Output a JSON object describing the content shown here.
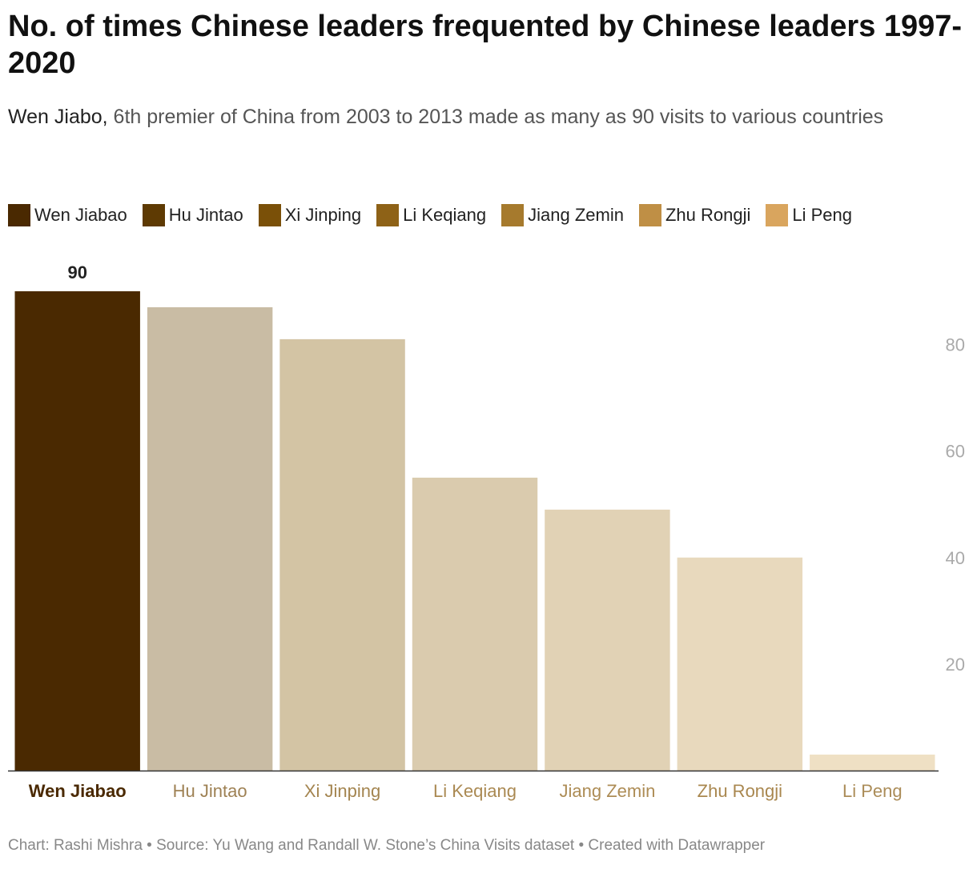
{
  "title": "No. of times Chinese leaders frequented by Chinese leaders 1997-2020",
  "subtitle": {
    "lead": "Wen Jiabo,",
    "rest": " 6th premier of China from 2003 to 2013 made as many as 90 visits to various countries"
  },
  "footer": "Chart: Rashi Mishra • Source: Yu Wang and Randall W. Stone’s China Visits dataset • Created with Datawrapper",
  "legend": [
    {
      "label": "Wen Jiabao",
      "color": "#4a2901"
    },
    {
      "label": "Hu Jintao",
      "color": "#5e3a03"
    },
    {
      "label": "Xi Jinping",
      "color": "#7a5008"
    },
    {
      "label": "Li Keqiang",
      "color": "#8e6217"
    },
    {
      "label": "Jiang Zemin",
      "color": "#a67a2d"
    },
    {
      "label": "Zhu Rongji",
      "color": "#bf8f45"
    },
    {
      "label": "Li Peng",
      "color": "#d9a55e"
    }
  ],
  "chart_data": {
    "type": "bar",
    "categories": [
      "Wen Jiabao",
      "Hu Jintao",
      "Xi Jinping",
      "Li Keqiang",
      "Jiang Zemin",
      "Zhu Rongji",
      "Li Peng"
    ],
    "values": [
      90,
      87,
      81,
      55,
      49,
      40,
      3
    ],
    "bar_colors": [
      "#4a2901",
      "#c9bca4",
      "#d3c4a4",
      "#dacbae",
      "#e1d2b5",
      "#e8d9bd",
      "#efe0c4"
    ],
    "label_colors": [
      "#4a2901",
      "#9e8154",
      "#a48550",
      "#aa8952",
      "#ad8c55",
      "#a9874f",
      "#ab8c58"
    ],
    "data_labels": [
      {
        "index": 0,
        "text": "90"
      }
    ],
    "y_ticks": [
      "20",
      "40",
      "60",
      "80"
    ],
    "ylim": [
      0,
      90
    ],
    "grid": false,
    "y_axis_side": "right",
    "highlight_index": 0
  }
}
